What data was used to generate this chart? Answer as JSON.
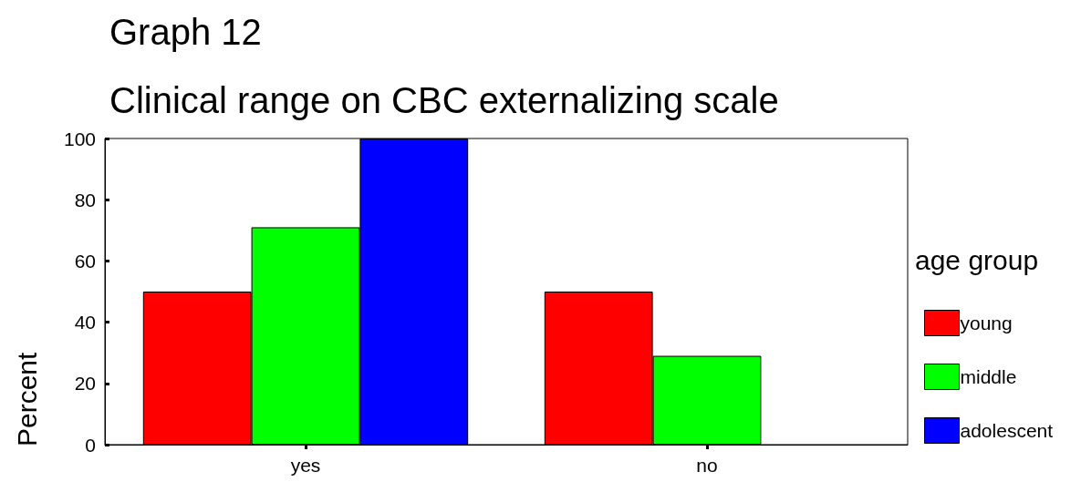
{
  "chart_data": {
    "type": "bar",
    "title": "Graph 12",
    "subtitle": "Clinical range on CBC externalizing scale",
    "ylabel": "Percent",
    "legend_title": "age group",
    "categories": [
      "yes",
      "no"
    ],
    "series": [
      {
        "name": "young",
        "color": "#ff0000",
        "values": [
          50,
          50
        ]
      },
      {
        "name": "middle",
        "color": "#00ff00",
        "values": [
          71,
          29
        ]
      },
      {
        "name": "adolescent",
        "color": "#0000ff",
        "values": [
          100,
          null
        ]
      }
    ],
    "ylim": [
      0,
      100
    ],
    "yticks": [
      0,
      20,
      40,
      60,
      80,
      100
    ],
    "grid": false,
    "legend": "right"
  }
}
